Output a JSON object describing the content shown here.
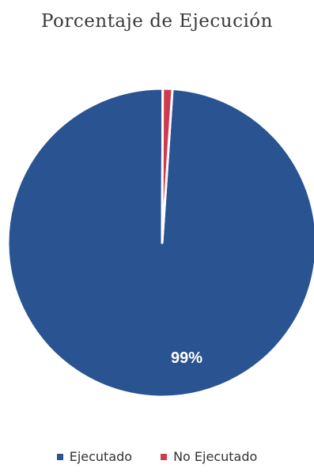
{
  "chart_data": {
    "type": "pie",
    "title": "Porcentaje de Ejecución",
    "categories": [
      "Ejecutado",
      "No Ejecutado"
    ],
    "values": [
      99,
      1
    ],
    "data_labels": [
      "99%",
      ""
    ],
    "colors": [
      "#2a5391",
      "#cf3a4e"
    ],
    "legend_position": "bottom"
  }
}
